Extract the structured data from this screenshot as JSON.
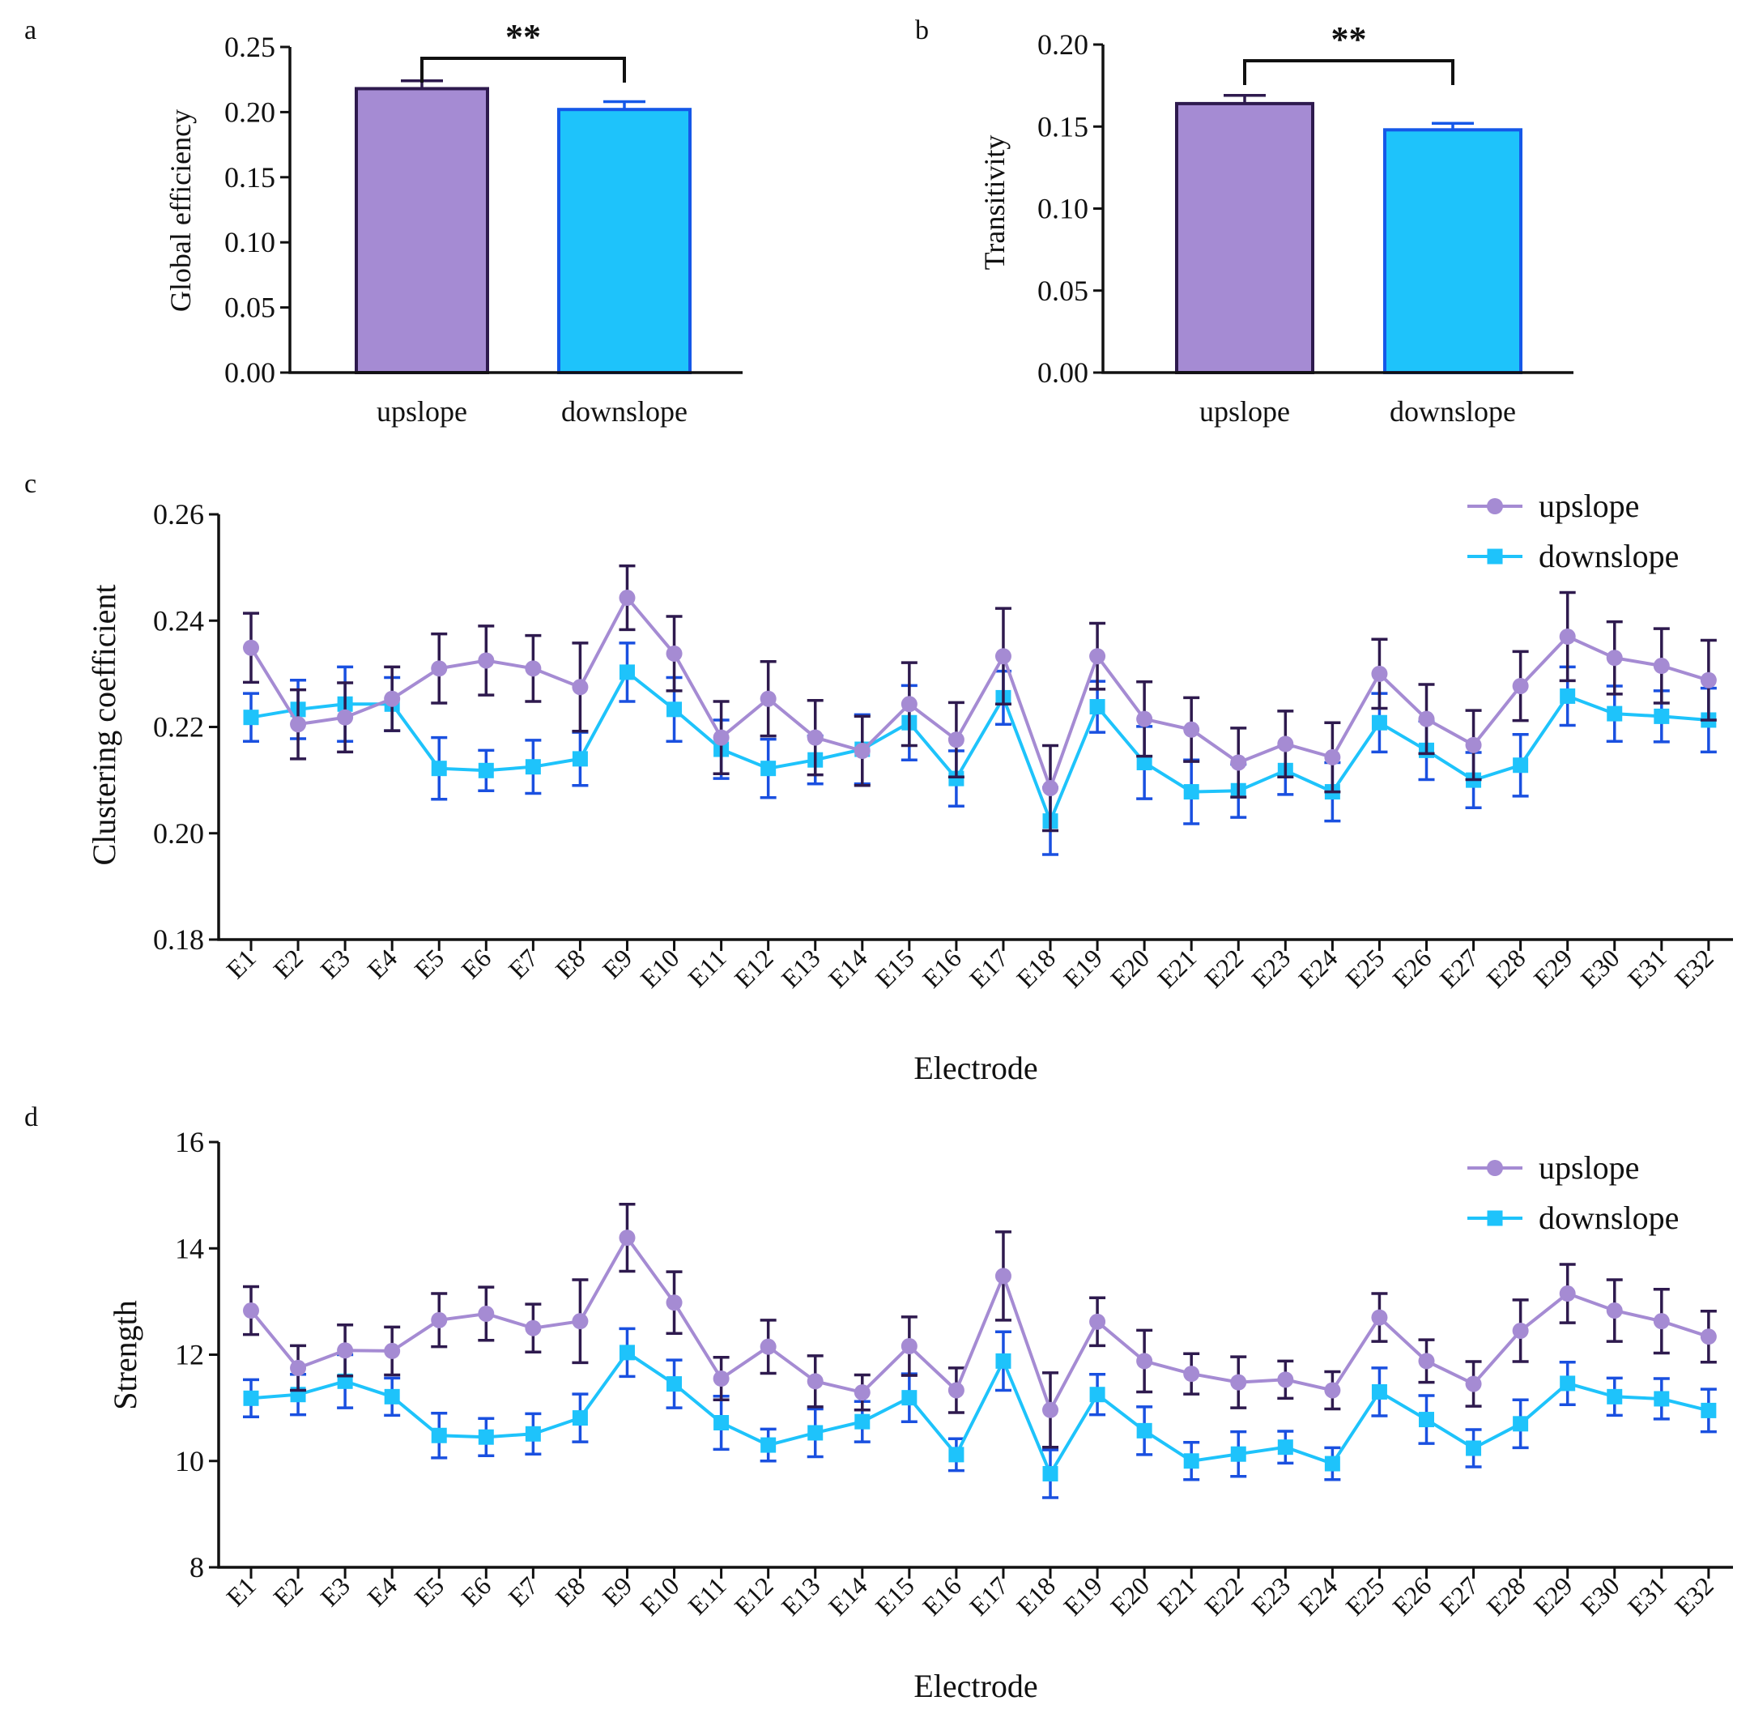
{
  "colors": {
    "upslope_fill": "#A58BD3",
    "upslope_edge": "#2E1A4E",
    "upslope_err": "#2E1A4E",
    "downslope_fill": "#1EC3FB",
    "downslope_edge": "#1558E8",
    "downslope_err": "#1A50E0",
    "axis": "#111111"
  },
  "chart_data": [
    {
      "panel": "a",
      "type": "bar",
      "categories": [
        "upslope",
        "downslope"
      ],
      "values": [
        0.218,
        0.202
      ],
      "errors": [
        0.006,
        0.006
      ],
      "ylabel": "Global efficiency",
      "ylim": [
        0,
        0.25
      ],
      "yticks": [
        "0.00",
        "0.05",
        "0.10",
        "0.15",
        "0.20",
        "0.25"
      ],
      "significance": "**"
    },
    {
      "panel": "b",
      "type": "bar",
      "categories": [
        "upslope",
        "downslope"
      ],
      "values": [
        0.164,
        0.148
      ],
      "errors": [
        0.005,
        0.004
      ],
      "ylabel": "Transitivity",
      "ylim": [
        0,
        0.2
      ],
      "yticks": [
        "0.00",
        "0.05",
        "0.10",
        "0.15",
        "0.20"
      ],
      "significance": "**"
    },
    {
      "panel": "c",
      "type": "line",
      "categories": [
        "E1",
        "E2",
        "E3",
        "E4",
        "E5",
        "E6",
        "E7",
        "E8",
        "E9",
        "E10",
        "E11",
        "E12",
        "E13",
        "E14",
        "E15",
        "E16",
        "E17",
        "E18",
        "E19",
        "E20",
        "E21",
        "E22",
        "E23",
        "E24",
        "E25",
        "E26",
        "E27",
        "E28",
        "E29",
        "E30",
        "E31",
        "E32"
      ],
      "series": [
        {
          "name": "upslope",
          "values": [
            0.2349,
            0.2205,
            0.2218,
            0.2253,
            0.231,
            0.2325,
            0.231,
            0.2275,
            0.2443,
            0.2338,
            0.218,
            0.2253,
            0.218,
            0.2155,
            0.2243,
            0.2176,
            0.2333,
            0.2085,
            0.2333,
            0.2215,
            0.2195,
            0.2133,
            0.2168,
            0.2143,
            0.23,
            0.2215,
            0.2166,
            0.2277,
            0.237,
            0.233,
            0.2315,
            0.2288
          ],
          "errors": [
            0.0065,
            0.0065,
            0.0065,
            0.006,
            0.0065,
            0.0065,
            0.0062,
            0.0083,
            0.006,
            0.007,
            0.0068,
            0.007,
            0.007,
            0.0065,
            0.0078,
            0.007,
            0.009,
            0.008,
            0.0062,
            0.007,
            0.006,
            0.0065,
            0.0062,
            0.0065,
            0.0065,
            0.0065,
            0.0065,
            0.0065,
            0.0083,
            0.0068,
            0.007,
            0.0075
          ]
        },
        {
          "name": "downslope",
          "values": [
            0.2218,
            0.2233,
            0.2243,
            0.2243,
            0.2122,
            0.2118,
            0.2125,
            0.214,
            0.2303,
            0.2233,
            0.2158,
            0.2122,
            0.2138,
            0.2158,
            0.2208,
            0.2103,
            0.2255,
            0.2023,
            0.2238,
            0.2133,
            0.2078,
            0.208,
            0.2118,
            0.2078,
            0.2208,
            0.2156,
            0.21,
            0.2128,
            0.2258,
            0.2225,
            0.222,
            0.2213
          ],
          "errors": [
            0.0045,
            0.0055,
            0.007,
            0.005,
            0.0058,
            0.0038,
            0.005,
            0.005,
            0.0055,
            0.006,
            0.0055,
            0.0055,
            0.0045,
            0.0065,
            0.007,
            0.0052,
            0.005,
            0.0063,
            0.0048,
            0.0068,
            0.006,
            0.005,
            0.0045,
            0.0055,
            0.0055,
            0.0055,
            0.0052,
            0.0058,
            0.0055,
            0.0052,
            0.0048,
            0.006
          ]
        }
      ],
      "xlabel": "Electrode",
      "ylabel": "Clustering coefficient",
      "ylim": [
        0.18,
        0.26
      ],
      "yticks": [
        "0.18",
        "0.20",
        "0.22",
        "0.24",
        "0.26"
      ],
      "legend": "top-right"
    },
    {
      "panel": "d",
      "type": "line",
      "categories": [
        "E1",
        "E2",
        "E3",
        "E4",
        "E5",
        "E6",
        "E7",
        "E8",
        "E9",
        "E10",
        "E11",
        "E12",
        "E13",
        "E14",
        "E15",
        "E16",
        "E17",
        "E18",
        "E19",
        "E20",
        "E21",
        "E22",
        "E23",
        "E24",
        "E25",
        "E26",
        "E27",
        "E28",
        "E29",
        "E30",
        "E31",
        "E32"
      ],
      "series": [
        {
          "name": "upslope",
          "values": [
            12.83,
            11.75,
            12.08,
            12.07,
            12.65,
            12.77,
            12.5,
            12.63,
            14.2,
            12.98,
            11.55,
            12.15,
            11.5,
            11.29,
            12.16,
            11.33,
            13.48,
            10.96,
            12.62,
            11.88,
            11.64,
            11.48,
            11.53,
            11.33,
            12.7,
            11.88,
            11.45,
            12.45,
            13.15,
            12.83,
            12.63,
            12.34
          ],
          "errors": [
            0.45,
            0.42,
            0.48,
            0.45,
            0.5,
            0.5,
            0.45,
            0.78,
            0.63,
            0.58,
            0.4,
            0.5,
            0.48,
            0.33,
            0.55,
            0.42,
            0.83,
            0.7,
            0.45,
            0.58,
            0.38,
            0.48,
            0.35,
            0.35,
            0.45,
            0.4,
            0.42,
            0.58,
            0.55,
            0.58,
            0.6,
            0.48
          ]
        },
        {
          "name": "downslope",
          "values": [
            11.18,
            11.25,
            11.5,
            11.21,
            10.48,
            10.45,
            10.51,
            10.81,
            12.04,
            11.45,
            10.72,
            10.3,
            10.53,
            10.74,
            11.19,
            10.12,
            11.88,
            9.76,
            11.25,
            10.57,
            10.0,
            10.13,
            10.26,
            9.95,
            11.3,
            10.78,
            10.24,
            10.7,
            11.46,
            11.21,
            11.17,
            10.95
          ],
          "errors": [
            0.35,
            0.38,
            0.5,
            0.35,
            0.42,
            0.35,
            0.38,
            0.45,
            0.45,
            0.45,
            0.5,
            0.3,
            0.45,
            0.38,
            0.45,
            0.3,
            0.55,
            0.45,
            0.38,
            0.45,
            0.35,
            0.42,
            0.3,
            0.3,
            0.45,
            0.45,
            0.35,
            0.45,
            0.4,
            0.35,
            0.38,
            0.4
          ]
        }
      ],
      "xlabel": "Electrode",
      "ylabel": "Strength",
      "ylim": [
        8,
        16
      ],
      "yticks": [
        "8",
        "10",
        "12",
        "14",
        "16"
      ],
      "legend": "top-right"
    }
  ]
}
